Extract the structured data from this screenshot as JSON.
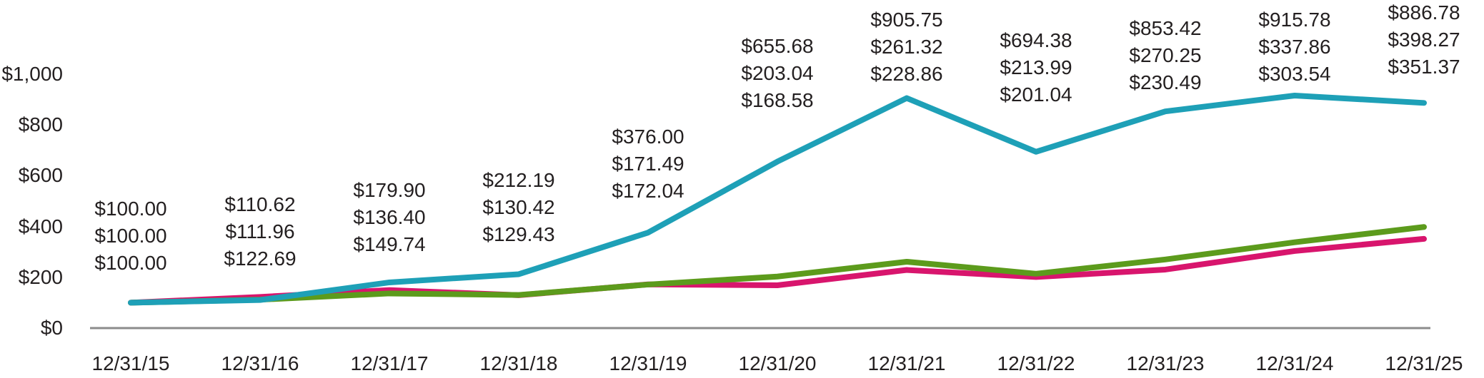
{
  "chart_data": {
    "type": "line",
    "title": "",
    "xlabel": "",
    "ylabel": "",
    "grid": "off",
    "legend": "none",
    "ylim": [
      0,
      1000
    ],
    "x": [
      "12/31/15",
      "12/31/16",
      "12/31/17",
      "12/31/18",
      "12/31/19",
      "12/31/20",
      "12/31/21",
      "12/31/22",
      "12/31/23",
      "12/31/24",
      "12/31/25"
    ],
    "y_ticks": [
      "$1,000",
      "$800",
      "$600",
      "$400",
      "$200",
      "$0"
    ],
    "y_tick_values": [
      1000,
      800,
      600,
      400,
      200,
      0
    ],
    "series": [
      {
        "name": "teal-series",
        "color": "#1EA0B7",
        "values": [
          100.0,
          110.62,
          179.9,
          212.19,
          376.0,
          655.68,
          905.75,
          694.38,
          853.42,
          915.78,
          886.78
        ]
      },
      {
        "name": "green-series",
        "color": "#5C9B1C",
        "values": [
          100.0,
          111.96,
          136.4,
          130.42,
          171.49,
          203.04,
          261.32,
          213.99,
          270.25,
          337.86,
          398.27
        ]
      },
      {
        "name": "pink-series",
        "color": "#D8156D",
        "values": [
          100.0,
          122.69,
          149.74,
          129.43,
          172.04,
          168.58,
          228.86,
          201.04,
          230.49,
          303.54,
          351.37
        ]
      }
    ],
    "point_labels": [
      [
        "$100.00",
        "$100.00",
        "$100.00"
      ],
      [
        "$110.62",
        "$111.96",
        "$122.69"
      ],
      [
        "$179.90",
        "$136.40",
        "$149.74"
      ],
      [
        "$212.19",
        "$130.42",
        "$129.43"
      ],
      [
        "$376.00",
        "$171.49",
        "$172.04"
      ],
      [
        "$655.68",
        "$203.04",
        "$168.58"
      ],
      [
        "$905.75",
        "$261.32",
        "$228.86"
      ],
      [
        "$694.38",
        "$213.99",
        "$201.04"
      ],
      [
        "$853.42",
        "$270.25",
        "$230.49"
      ],
      [
        "$915.78",
        "$337.86",
        "$303.54"
      ],
      [
        "$886.78",
        "$398.27",
        "$351.37"
      ]
    ],
    "axis_color": "#8C8C8C",
    "text_color": "#231F20"
  }
}
